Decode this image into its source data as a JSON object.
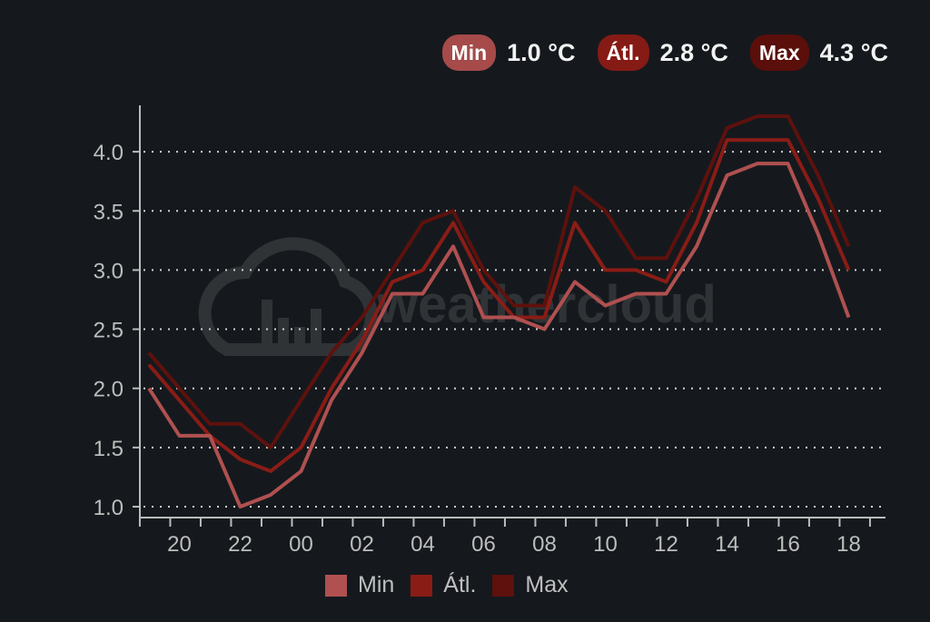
{
  "summary": [
    {
      "label": "Min",
      "value": "1.0 °C",
      "color": "#a64a4a"
    },
    {
      "label": "Átl.",
      "value": "2.8 °C",
      "color": "#861a14"
    },
    {
      "label": "Max",
      "value": "4.3 °C",
      "color": "#5a0f0b"
    }
  ],
  "watermark": "weathercloud",
  "chart_data": {
    "type": "line",
    "x": [
      "19",
      "20",
      "21",
      "22",
      "23",
      "00",
      "01",
      "02",
      "03",
      "04",
      "05",
      "06",
      "07",
      "08",
      "09",
      "10",
      "11",
      "12",
      "13",
      "14",
      "15",
      "16",
      "17",
      "18"
    ],
    "x_tick_labels": [
      "20",
      "22",
      "00",
      "02",
      "04",
      "06",
      "08",
      "10",
      "12",
      "14",
      "16",
      "18"
    ],
    "y_tick_labels": [
      "1.0",
      "1.5",
      "2.0",
      "2.5",
      "3.0",
      "3.5",
      "4.0"
    ],
    "ylim": [
      1.0,
      4.3
    ],
    "grid": "horizontal dotted",
    "legend": "bottom",
    "series": [
      {
        "name": "Min",
        "color": "#b05050",
        "values": [
          2.0,
          1.6,
          1.6,
          1.0,
          1.1,
          1.3,
          1.9,
          2.3,
          2.8,
          2.8,
          3.2,
          2.6,
          2.6,
          2.5,
          2.9,
          2.7,
          2.8,
          2.8,
          3.2,
          3.8,
          3.9,
          3.9,
          3.3,
          2.6
        ]
      },
      {
        "name": "Átl.",
        "color": "#8a1c16",
        "values": [
          2.2,
          1.9,
          1.6,
          1.4,
          1.3,
          1.5,
          2.0,
          2.4,
          2.9,
          3.0,
          3.4,
          2.9,
          2.6,
          2.6,
          3.4,
          3.0,
          3.0,
          2.9,
          3.4,
          4.1,
          4.1,
          4.1,
          3.6,
          3.0
        ]
      },
      {
        "name": "Max",
        "color": "#5e110d",
        "values": [
          2.3,
          2.0,
          1.7,
          1.7,
          1.5,
          1.9,
          2.3,
          2.6,
          3.0,
          3.4,
          3.5,
          3.0,
          2.7,
          2.7,
          3.7,
          3.5,
          3.1,
          3.1,
          3.6,
          4.2,
          4.3,
          4.3,
          3.8,
          3.2
        ]
      }
    ]
  }
}
